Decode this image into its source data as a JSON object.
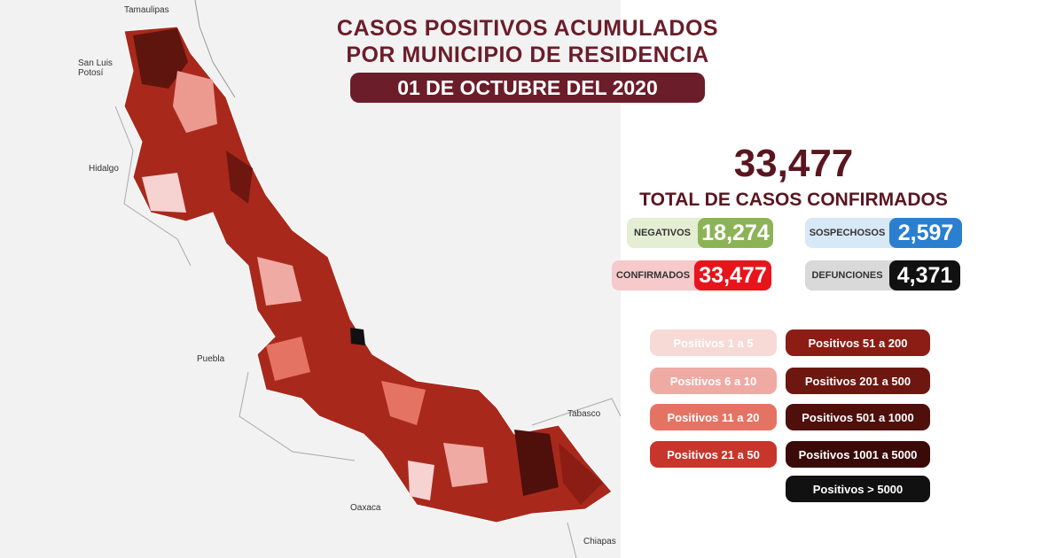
{
  "header": {
    "title_line1": "CASOS POSITIVOS ACUMULADOS",
    "title_line2": "POR MUNICIPIO DE RESIDENCIA",
    "date": "01 DE OCTUBRE DEL 2020"
  },
  "total": {
    "value": "33,477",
    "label": "TOTAL DE CASOS CONFIRMADOS"
  },
  "stats": [
    {
      "label": "NEGATIVOS",
      "value": "18,274",
      "color": "#8db357",
      "label_bg": "#e3eed3"
    },
    {
      "label": "SOSPECHOSOS",
      "value": "2,597",
      "color": "#2a7fcf",
      "label_bg": "#d7e8f6"
    },
    {
      "label": "CONFIRMADOS",
      "value": "33,477",
      "color": "#e8141c",
      "label_bg": "#f6c9cb"
    },
    {
      "label": "DEFUNCIONES",
      "value": "4,371",
      "color": "#111111",
      "label_bg": "#d9d9d9"
    }
  ],
  "legend": [
    {
      "label": "Positivos 1 a 5",
      "color": "#f7d9d6"
    },
    {
      "label": "Positivos 6 a 10",
      "color": "#f0aaa4"
    },
    {
      "label": "Positivos 11 a 20",
      "color": "#e57363"
    },
    {
      "label": "Positivos 21 a 50",
      "color": "#c8352a"
    },
    {
      "label": "Positivos 51 a 200",
      "color": "#8b1d14"
    },
    {
      "label": "Positivos 201 a 500",
      "color": "#6e1710"
    },
    {
      "label": "Positivos 501 a 1000",
      "color": "#4f0f0b"
    },
    {
      "label": "Positivos 1001 a 5000",
      "color": "#3a0a08"
    },
    {
      "label": "Positivos > 5000",
      "color": "#111111"
    }
  ],
  "map_labels": [
    "Tamaulipas",
    "San Luis Potosí",
    "Hidalgo",
    "Puebla",
    "Oaxaca",
    "Tabasco",
    "Chiapas"
  ]
}
